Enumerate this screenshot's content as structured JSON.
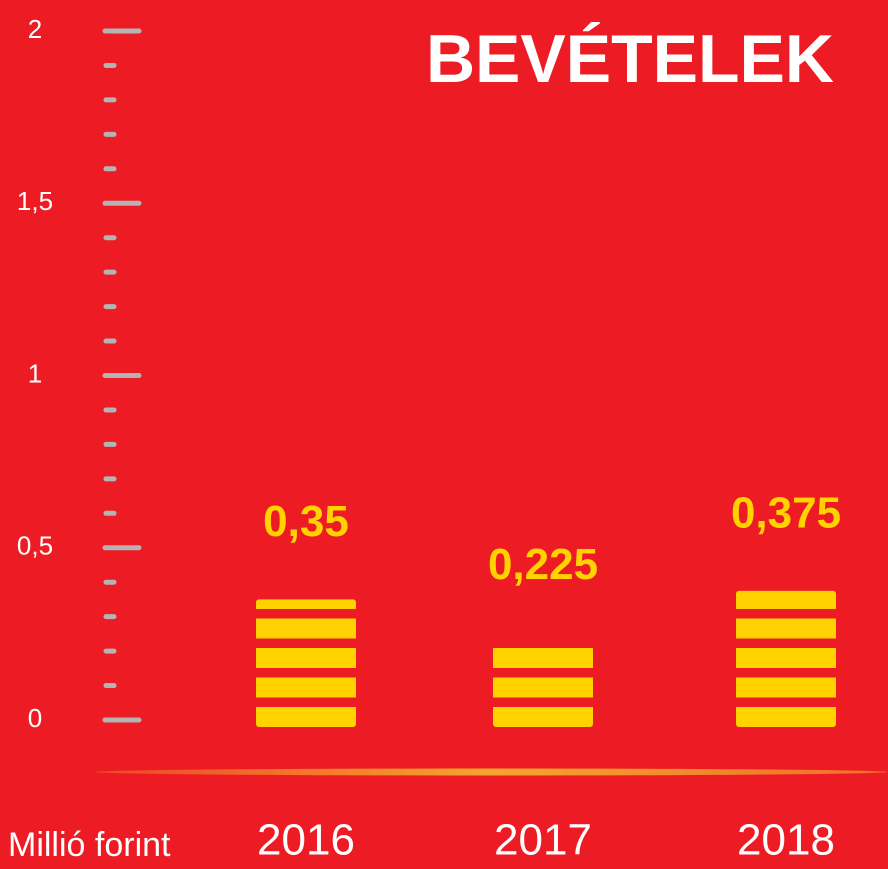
{
  "chart_data": {
    "type": "bar",
    "title": "BEVÉTELEK",
    "ylabel": "Millió forint",
    "categories": [
      "2016",
      "2017",
      "2018"
    ],
    "values": [
      0.35,
      0.225,
      0.375
    ],
    "value_labels": [
      "0,35",
      "0,225",
      "0,375"
    ],
    "color": "#ffd200",
    "ylim": [
      0,
      2
    ],
    "yticks": [
      0,
      {
        "value": 0.5,
        "label": "0,5"
      },
      1,
      {
        "value": 1.5,
        "label": "1,5"
      },
      2
    ],
    "yminorticks": [
      0.1,
      0.2,
      0.3,
      0.4,
      0.6,
      0.7,
      0.8,
      0.9,
      1.1,
      1.2,
      1.3,
      1.4,
      1.6,
      1.7,
      1.8,
      1.9
    ]
  }
}
